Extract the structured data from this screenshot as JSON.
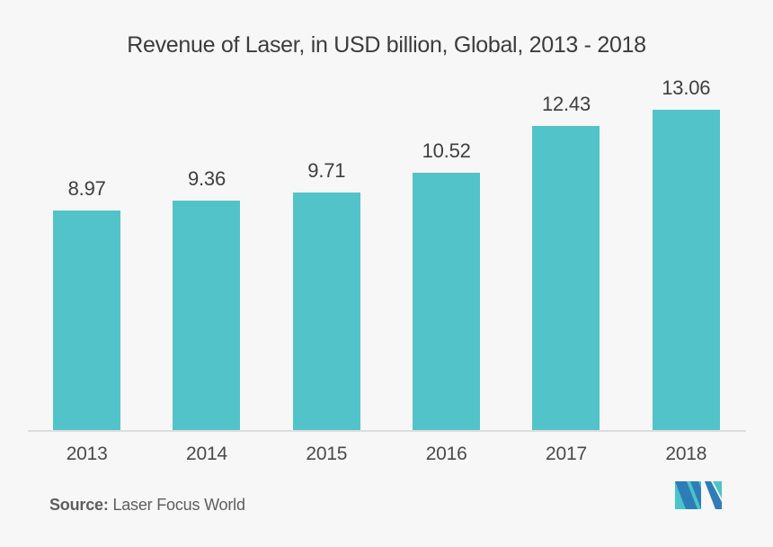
{
  "title": "Revenue of Laser, in USD billion, Global, 2013 - 2018",
  "chart_data": {
    "type": "bar",
    "categories": [
      "2013",
      "2014",
      "2015",
      "2016",
      "2017",
      "2018"
    ],
    "values": [
      8.97,
      9.36,
      9.71,
      10.52,
      12.43,
      13.06
    ],
    "title": "Revenue of Laser, in USD billion, Global, 2013 - 2018",
    "xlabel": "",
    "ylabel": "",
    "ylim": [
      0,
      14
    ],
    "grid": false,
    "legend": false,
    "value_labels": true,
    "bar_color": "#52C3C9"
  },
  "source": {
    "label": "Source:",
    "text": "Laser Focus World"
  },
  "logo": {
    "name": "mordor-intelligence-logo"
  },
  "colors": {
    "background": "#F7F7F7",
    "bar": "#52C3C9",
    "axis_line": "#DDDDDD",
    "title_text": "#3C3C3C",
    "value_text": "#3E3E3E",
    "tick_text": "#4A4A4A",
    "source_text": "#5E5E5E",
    "logo_teal": "#4AC4C9",
    "logo_blue": "#2E7DB8"
  }
}
